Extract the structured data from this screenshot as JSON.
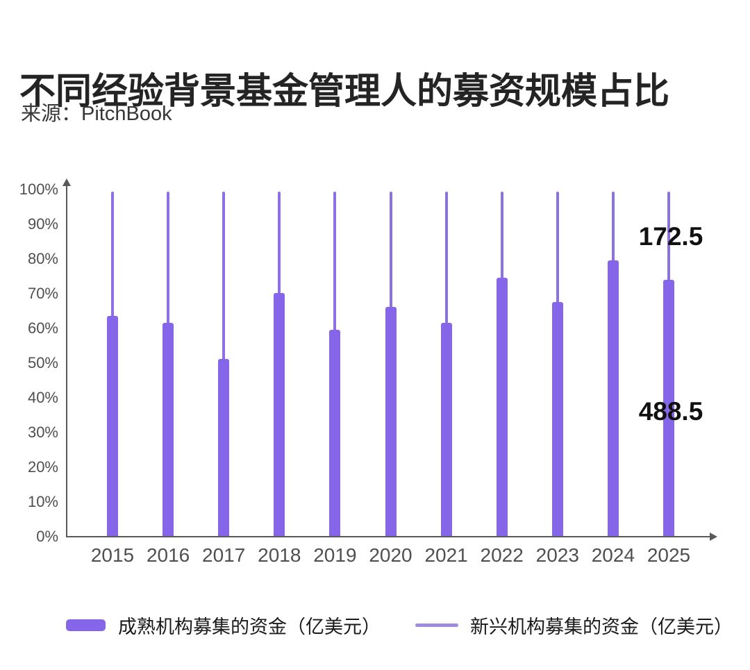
{
  "header": {
    "title": "不同经验背景基金管理人的募资规模占比",
    "source": "来源：PitchBook"
  },
  "chart_data": {
    "type": "bar",
    "title": "不同经验背景基金管理人的募资规模占比",
    "source": "PitchBook",
    "unit": "亿美元",
    "categories": [
      "2015",
      "2016",
      "2017",
      "2018",
      "2019",
      "2020",
      "2021",
      "2022",
      "2023",
      "2024",
      "2025"
    ],
    "y_axis": {
      "label_format": "percent",
      "min": 0,
      "max": 100,
      "step": 10,
      "tick_labels": [
        "100%",
        "90%",
        "80%",
        "70%",
        "60%",
        "50%",
        "40%",
        "30%",
        "20%",
        "10%",
        "0%"
      ]
    },
    "series": [
      {
        "name": "成熟机构募集的资金（亿美元）",
        "marker": "thick-bar",
        "share_pct": [
          63.5,
          61.5,
          51,
          70,
          59.5,
          66,
          61.5,
          74.5,
          67.5,
          79.5,
          73.9
        ]
      },
      {
        "name": "新兴机构募集的资金（亿美元）",
        "marker": "thin-line",
        "share_pct": [
          36.5,
          38.5,
          49,
          30,
          40.5,
          34,
          38.5,
          25.5,
          32.5,
          20.5,
          26.1
        ]
      }
    ],
    "annotations": [
      {
        "text": "172.5",
        "category": "2025",
        "series": "新兴机构募集的资金（亿美元）"
      },
      {
        "text": "488.5",
        "category": "2025",
        "series": "成熟机构募集的资金（亿美元）"
      }
    ],
    "legend_position": "bottom",
    "grid": false,
    "colors": {
      "established_bar": "#8565E8",
      "emerging_line": "#8C70E4",
      "legend_line": "#A18BE0",
      "axis": "#58595B",
      "tick_text": "#4F4F4F",
      "annotation_text": "#111111",
      "title_text": "#242424"
    }
  }
}
